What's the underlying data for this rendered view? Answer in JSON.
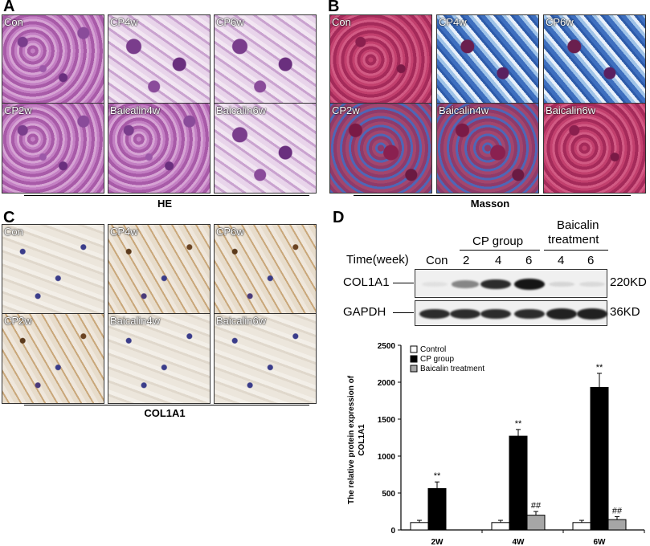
{
  "panels": {
    "A": {
      "letter": "A",
      "group_label": "HE",
      "tiles": [
        "Con",
        "CP4w",
        "CP6w",
        "CP2w",
        "Baicalin4w",
        "Baicalin6w"
      ]
    },
    "B": {
      "letter": "B",
      "group_label": "Masson",
      "tiles": [
        "Con",
        "CP4w",
        "CP6w",
        "CP2w",
        "Baicalin4w",
        "Baicalin6w"
      ]
    },
    "C": {
      "letter": "C",
      "group_label": "COL1A1",
      "tiles": [
        "Con",
        "CP4w",
        "CP6w",
        "CP2w",
        "Baicalin4w",
        "Baicalin6w"
      ]
    },
    "D": {
      "letter": "D"
    }
  },
  "western_blot": {
    "header_cp": "CP group",
    "header_baicalin_line1": "Baicalin",
    "header_baicalin_line2": "treatment",
    "time_label": "Time(week)",
    "lanes": [
      "Con",
      "2",
      "4",
      "6",
      "4",
      "6"
    ],
    "rows": [
      {
        "name": "COL1A1",
        "size": "220KD",
        "band_intensity": [
          0.05,
          0.45,
          0.85,
          0.95,
          0.1,
          0.08
        ]
      },
      {
        "name": "GAPDH",
        "size": "36KD",
        "band_intensity": [
          0.85,
          0.85,
          0.85,
          0.85,
          0.9,
          0.9
        ]
      }
    ]
  },
  "chart_data": {
    "type": "bar",
    "categories": [
      "2W",
      "4W",
      "6W"
    ],
    "ylabel_line1": "The relative protein expression of",
    "ylabel_line2": "COL1A1",
    "ylim": [
      0,
      2500
    ],
    "yticks": [
      "0",
      "500",
      "1000",
      "1500",
      "2000",
      "2500"
    ],
    "legend_position": "top-left",
    "series": [
      {
        "name": "Control",
        "color": "#ffffff",
        "values": [
          100,
          100,
          100
        ],
        "errors": [
          30,
          30,
          30
        ],
        "annotations": [
          "",
          "",
          ""
        ]
      },
      {
        "name": "CP group",
        "color": "#000000",
        "values": [
          560,
          1270,
          1930
        ],
        "errors": [
          90,
          90,
          190
        ],
        "annotations": [
          "**",
          "**",
          "**"
        ]
      },
      {
        "name": "Baicalin treatment",
        "color": "#a6a6a6",
        "values": null,
        "errors": [
          0,
          50,
          40
        ],
        "annotations": [
          "",
          "##",
          "##"
        ],
        "values_visible": [
          null,
          200,
          140
        ]
      }
    ]
  }
}
